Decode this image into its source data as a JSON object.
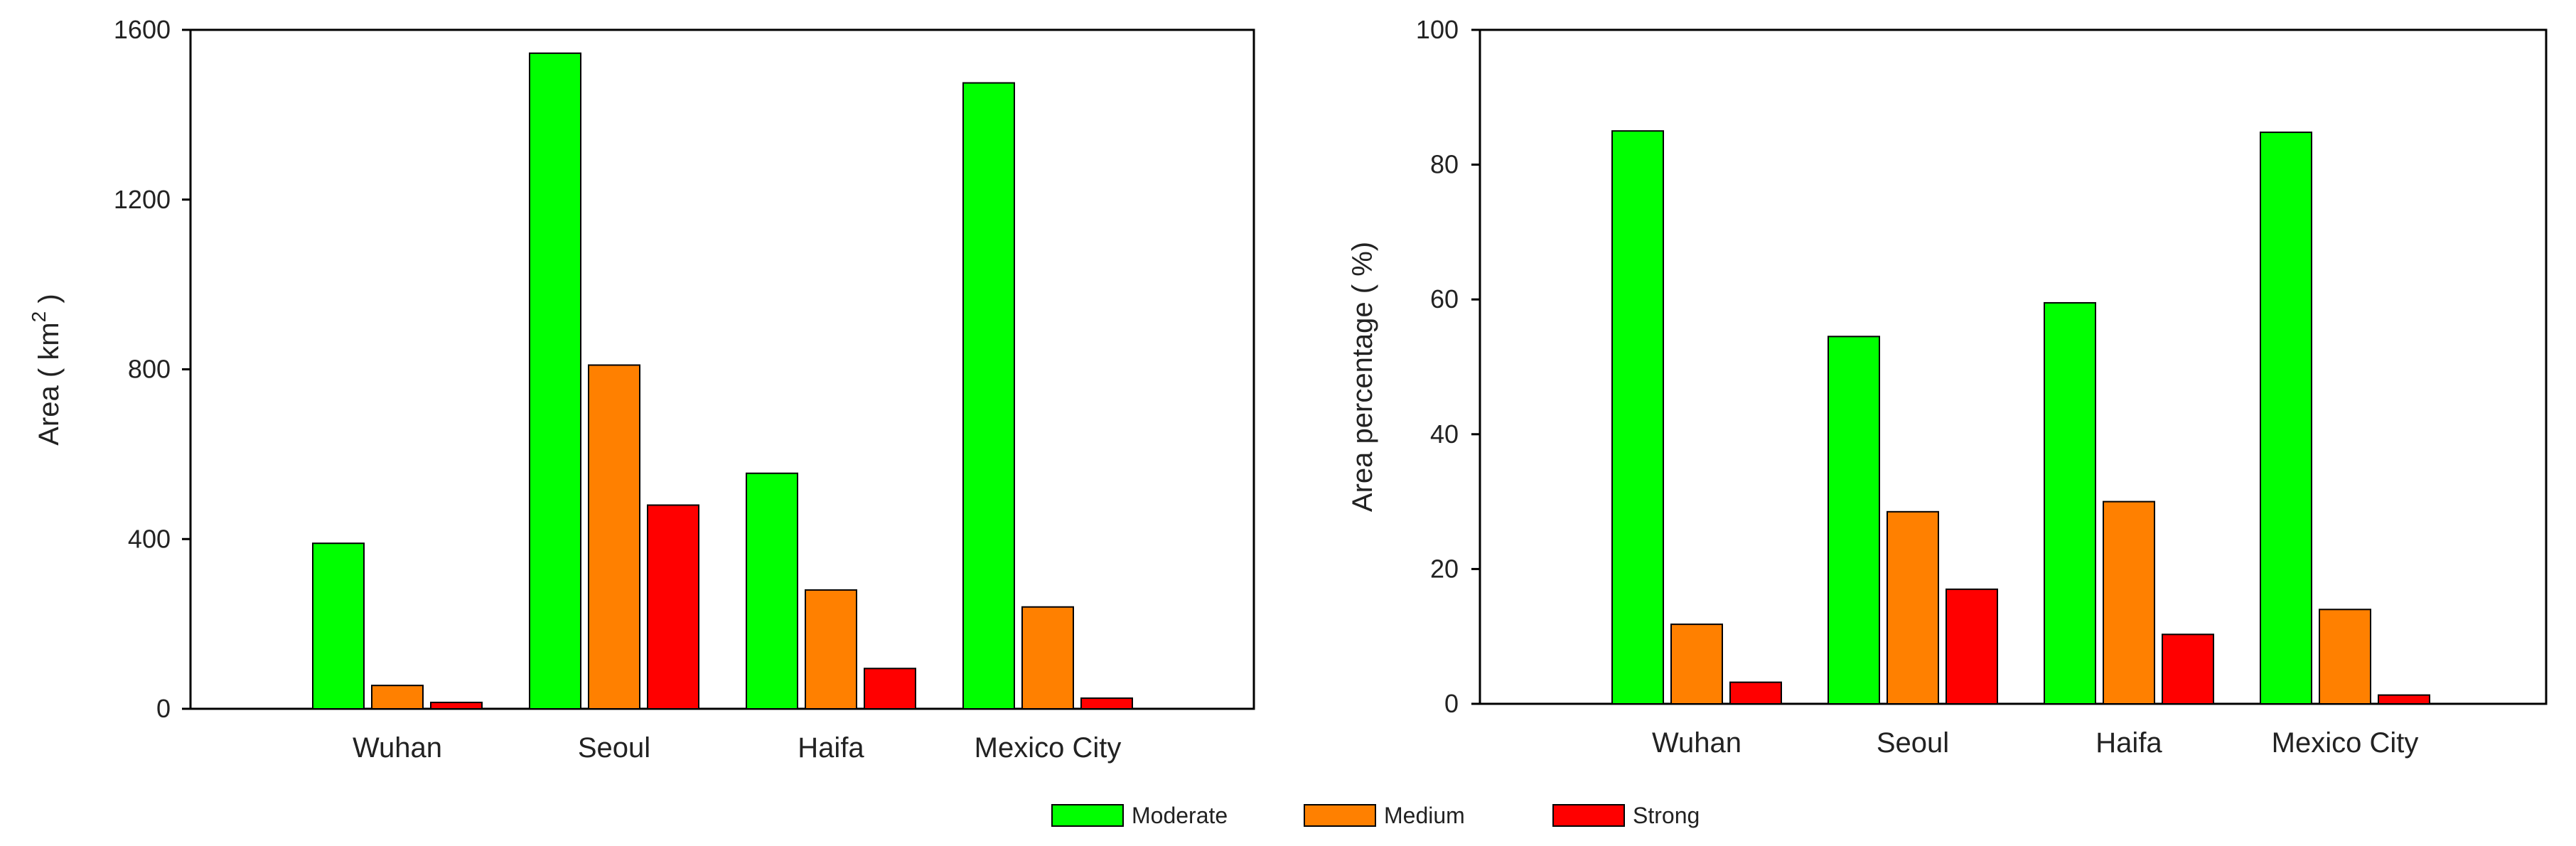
{
  "legend": {
    "entries": [
      {
        "name": "Moderate",
        "color": "#00ff00"
      },
      {
        "name": "Medium",
        "color": "#ff8000"
      },
      {
        "name": "Strong",
        "color": "#ff0000"
      }
    ]
  },
  "chart_data": [
    {
      "type": "bar",
      "categories": [
        "Wuhan",
        "Seoul",
        "Haifa",
        "Mexico City"
      ],
      "series": [
        {
          "name": "Moderate",
          "color": "#00ff00",
          "values": [
            390,
            1545,
            555,
            1475
          ]
        },
        {
          "name": "Medium",
          "color": "#ff8000",
          "values": [
            55,
            810,
            280,
            240
          ]
        },
        {
          "name": "Strong",
          "color": "#ff0000",
          "values": [
            15,
            480,
            95,
            25
          ]
        }
      ],
      "ylabel": "Area ( km",
      "ylabel_sup": "2",
      "ylabel_end": " )",
      "ylim": [
        0,
        1600
      ],
      "yticks": [
        "0",
        "400",
        "800",
        "1200",
        "1600"
      ],
      "grid": false
    },
    {
      "type": "bar",
      "categories": [
        "Wuhan",
        "Seoul",
        "Haifa",
        "Mexico City"
      ],
      "series": [
        {
          "name": "Moderate",
          "color": "#00ff00",
          "values": [
            85,
            54.5,
            59.5,
            84.8
          ]
        },
        {
          "name": "Medium",
          "color": "#ff8000",
          "values": [
            11.8,
            28.5,
            30,
            14
          ]
        },
        {
          "name": "Strong",
          "color": "#ff0000",
          "values": [
            3.2,
            17,
            10.3,
            1.3
          ]
        }
      ],
      "ylabel": "Area percentage ( %)",
      "ylim": [
        0,
        100
      ],
      "yticks": [
        "0",
        "20",
        "40",
        "60",
        "80",
        "100"
      ],
      "grid": false
    }
  ]
}
